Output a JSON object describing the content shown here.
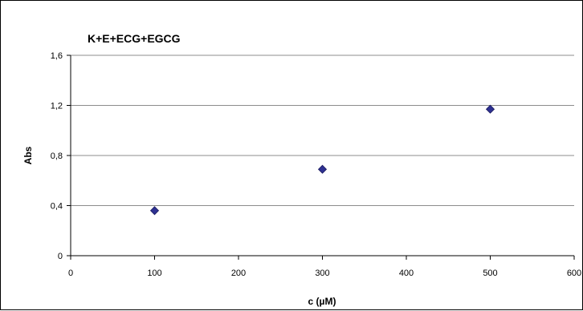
{
  "chart_data": {
    "type": "scatter",
    "title": "K+E+ECG+EGCG",
    "xlabel": "c (µM)",
    "ylabel": "Abs",
    "xlim": [
      0,
      600
    ],
    "ylim": [
      0,
      1.6
    ],
    "xticks": [
      0,
      100,
      200,
      300,
      400,
      500,
      600
    ],
    "yticks": [
      0,
      0.4,
      0.8,
      1.2,
      1.6
    ],
    "xtick_labels": [
      "0",
      "100",
      "200",
      "300",
      "400",
      "500",
      "600"
    ],
    "ytick_labels": [
      "0",
      "0,4",
      "0,8",
      "1,2",
      "1,6"
    ],
    "grid": "horizontal",
    "legend": "none",
    "marker": "diamond",
    "marker_color": "#2E3192",
    "series": [
      {
        "x": [
          100,
          300,
          500
        ],
        "y": [
          0.36,
          0.69,
          1.17
        ]
      }
    ]
  }
}
